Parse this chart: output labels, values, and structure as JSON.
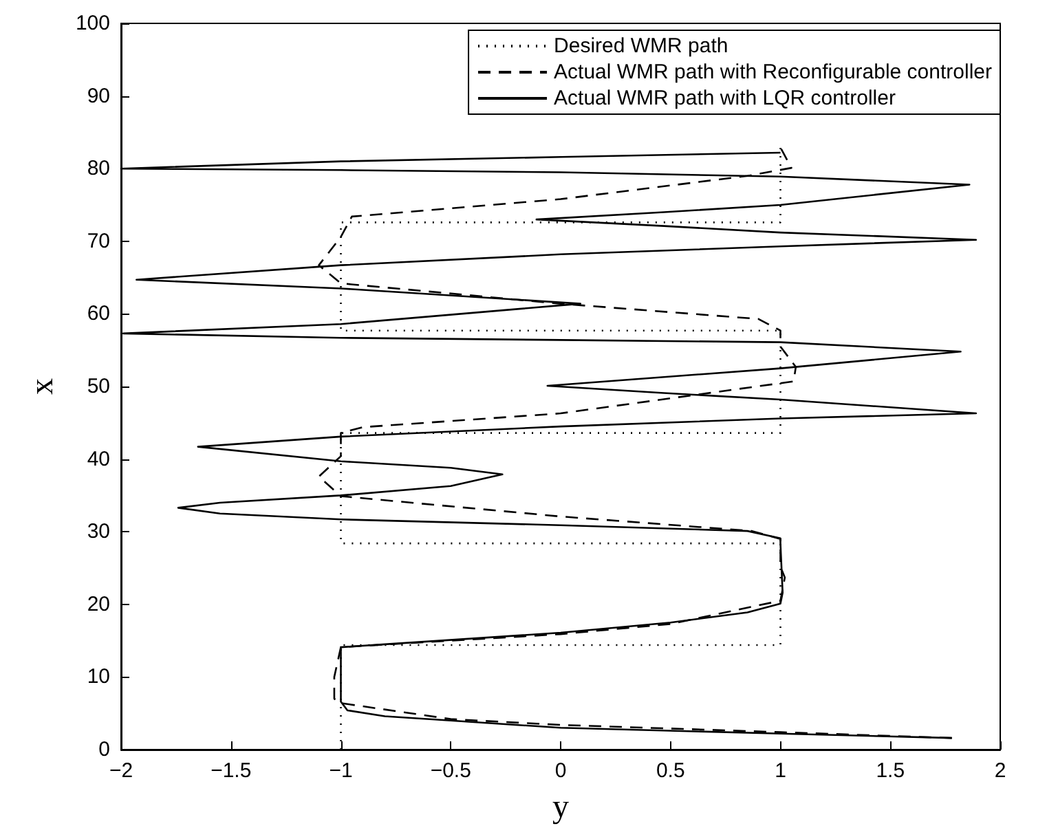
{
  "chart_data": {
    "type": "line",
    "xlabel": "y",
    "ylabel": "x",
    "xlim": [
      -2,
      2
    ],
    "xticks": [
      -2,
      -1.5,
      -1,
      -0.5,
      0,
      0.5,
      1,
      1.5,
      2
    ],
    "ylim": [
      0,
      100
    ],
    "yticks": [
      0,
      10,
      20,
      30,
      40,
      50,
      60,
      70,
      80,
      90,
      100
    ],
    "grid": false,
    "legend": "top right",
    "marker": "none",
    "series": [
      {
        "name": "Desired WMR path",
        "color": "#000000",
        "line_style": "dotted",
        "x": [
          -1,
          -1,
          1,
          1,
          -1,
          -1,
          1,
          1,
          -1,
          -1,
          1,
          1
        ],
        "values": [
          0,
          14.4,
          14.4,
          28.4,
          28.4,
          43.6,
          43.6,
          57.7,
          57.7,
          72.6,
          72.6,
          83
        ]
      },
      {
        "name": "Actual WMR path with Reconfigurable controller",
        "color": "#000000",
        "line_style": "dashed",
        "x": [
          1.78,
          1,
          0,
          -0.5,
          -1,
          -1.03,
          -1.03,
          -1,
          0,
          0.5,
          1,
          1.02,
          1,
          1,
          0.87,
          0,
          -1,
          -1.1,
          -1,
          -1,
          -0.9,
          0,
          1.06,
          1.07,
          1,
          1,
          0.9,
          0,
          -1,
          -1.1,
          -1,
          -0.95,
          0,
          0.85,
          1.05,
          1
        ],
        "values": [
          1.6,
          2.4,
          3.4,
          4.2,
          6.4,
          7,
          10,
          14.1,
          15.9,
          17.3,
          20.5,
          23.7,
          25.2,
          29,
          30.1,
          32.1,
          34.9,
          37.6,
          40.4,
          43.6,
          44.4,
          46.3,
          50.7,
          52.7,
          55.5,
          57.7,
          59.3,
          61.4,
          64.2,
          66.7,
          70.6,
          73.4,
          75.8,
          79,
          80.1,
          82.9
        ]
      },
      {
        "name": "Actual WMR path with LQR controller",
        "color": "#000000",
        "line_style": "solid",
        "x": [
          1.78,
          1,
          0,
          -0.5,
          -0.8,
          -0.97,
          -1,
          -1,
          -0.8,
          0,
          0.5,
          0.85,
          1,
          1.01,
          1,
          1,
          0.85,
          0,
          -1,
          -1.55,
          -1.74,
          -1.55,
          -1,
          -0.5,
          -0.265,
          -0.5,
          -1,
          -1.65,
          -1,
          0,
          1,
          1.89,
          1,
          0.47,
          -0.06,
          0.47,
          1,
          1.82,
          1,
          0,
          -1,
          -1.99,
          -1,
          0.09,
          -1,
          -1.93,
          -1,
          0,
          1,
          1.89,
          1,
          0.47,
          -0.11,
          0.47,
          1,
          1.86,
          1,
          0,
          -1,
          -2,
          -1,
          0,
          1
        ],
        "values": [
          1.6,
          2.2,
          3,
          4,
          4.6,
          5.4,
          6.6,
          14.1,
          14.5,
          16.1,
          17.5,
          18.9,
          20.1,
          21.6,
          28.4,
          29.1,
          30.1,
          30.9,
          31.7,
          32.5,
          33.3,
          34,
          35,
          36.3,
          37.9,
          38.8,
          39.7,
          41.7,
          43.1,
          44.5,
          45.6,
          46.3,
          48.2,
          49.1,
          50.1,
          51.3,
          52.5,
          54.8,
          56.1,
          56.4,
          56.7,
          57.3,
          58.6,
          61.4,
          63.5,
          64.7,
          66.7,
          68.2,
          69.3,
          70.2,
          71.2,
          72.1,
          73,
          74,
          75,
          77.8,
          78.9,
          79.5,
          79.8,
          80,
          81,
          81.6,
          82.2
        ]
      }
    ]
  }
}
